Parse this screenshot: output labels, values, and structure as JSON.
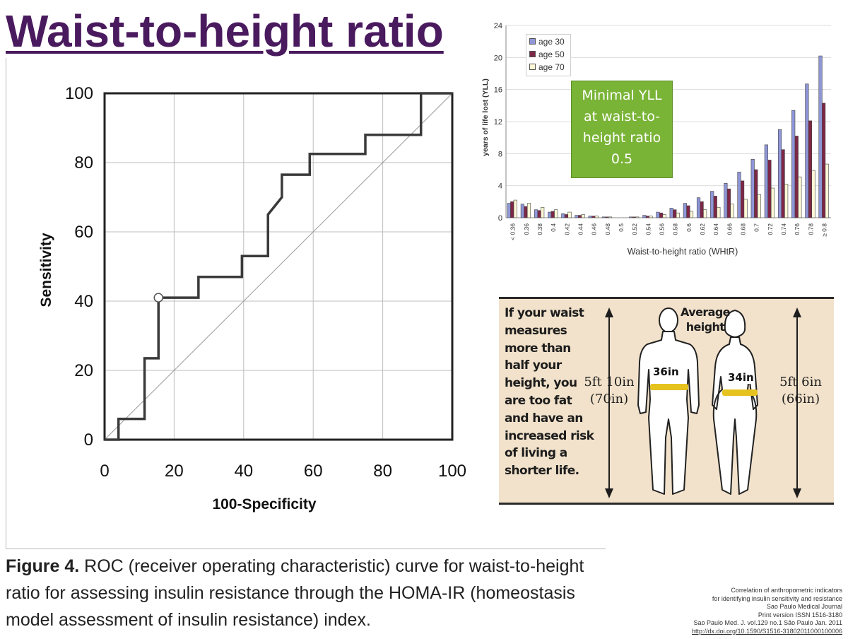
{
  "slide": {
    "title": "Waist-to-height ratio"
  },
  "figure_caption": {
    "label": "Figure 4.",
    "text": " ROC (receiver operating characteristic) curve for waist-to-height ratio for assessing insulin resistance through the HOMA-IR (homeostasis model assessment of insulin resistance) index."
  },
  "waist_infographic": {
    "text_lines": [
      "If your waist",
      "measures",
      "more than",
      "half your",
      "height, you",
      "are too fat",
      "and have an",
      "increased risk",
      "of living a",
      "shorter life."
    ],
    "average_height": [
      "Average",
      "height"
    ],
    "male": {
      "height_ft": "5ft 10in",
      "height_in": "(70in)",
      "waist": "36in"
    },
    "female": {
      "height_ft": "5ft 6in",
      "height_in": "(66in)",
      "waist": "34in"
    },
    "colors": {
      "background": "#f2e2cb",
      "belt": "#e6c21e"
    }
  },
  "citation": {
    "lines": [
      "Correlation of anthropometric indicators",
      "for identifying insulin sensitivity and resistance",
      "Sao Paulo Medical Journal",
      "Print version ISSN 1516-3180",
      "Sao Paulo Med. J. vol.129 no.1 São Paulo Jan. 2011"
    ],
    "link": "http://dx.doi.org/10.1590/S1516-31802011000100006"
  },
  "chart_data": [
    {
      "type": "line",
      "xlabel": "100-Specificity",
      "ylabel": "Sensitivity",
      "xlim": [
        0,
        100
      ],
      "ylim": [
        0,
        100
      ],
      "x_ticks": [
        0,
        20,
        40,
        60,
        80,
        100
      ],
      "y_ticks": [
        0,
        20,
        40,
        60,
        80,
        100
      ],
      "grid": true,
      "series": [
        {
          "x": [
            0,
            4,
            4,
            11.5,
            11.5,
            15.5,
            15.5,
            27,
            27,
            39.5,
            39.5,
            47,
            47,
            51,
            51,
            59,
            59,
            75,
            75,
            91,
            91,
            100
          ],
          "y": [
            0,
            0,
            6,
            6,
            23.5,
            23.5,
            41,
            41,
            47,
            47,
            53,
            53,
            65,
            70,
            76.5,
            76.5,
            82.5,
            82.5,
            88,
            88,
            100,
            100
          ]
        }
      ],
      "reference_line": {
        "x": [
          0,
          100
        ],
        "y": [
          0,
          100
        ]
      },
      "marked_point": {
        "x": 15.5,
        "y": 41
      },
      "colors": {
        "curve": "#3a3a3a",
        "diagonal": "#9a9a9a",
        "grid": "#bdbdbd"
      }
    },
    {
      "type": "bar",
      "xlabel": "Waist-to-height ratio (WHtR)",
      "ylabel": "years of life lost (YLL)",
      "ylim": [
        0,
        24
      ],
      "y_ticks": [
        0,
        4,
        8,
        12,
        16,
        20,
        24
      ],
      "grid": true,
      "legend": "top-left",
      "annotation": [
        "Minimal YLL",
        "at waist-to-",
        "height ratio",
        "0.5"
      ],
      "categories": [
        "< 0.36",
        "0.36",
        "0.38",
        "0.4",
        "0.42",
        "0.44",
        "0.46",
        "0.48",
        "0.5",
        "0.52",
        "0.54",
        "0.56",
        "0.58",
        "0.6",
        "0.62",
        "0.64",
        "0.66",
        "0.68",
        "0.7",
        "0.72",
        "0.74",
        "0.76",
        "0.78",
        "≥ 0.8"
      ],
      "series": [
        {
          "name": "age 30",
          "color": "#8f96d8",
          "values": [
            1.8,
            1.7,
            1.0,
            0.7,
            0.5,
            0.3,
            0.2,
            0.1,
            0.0,
            0.1,
            0.3,
            0.7,
            1.2,
            1.8,
            2.5,
            3.3,
            4.3,
            5.7,
            7.3,
            9.1,
            11.0,
            13.4,
            16.7,
            20.2
          ]
        },
        {
          "name": "age 50",
          "color": "#7e2646",
          "values": [
            2.0,
            1.4,
            0.9,
            0.8,
            0.4,
            0.3,
            0.2,
            0.1,
            0.0,
            0.1,
            0.2,
            0.6,
            1.0,
            1.5,
            2.0,
            2.7,
            3.6,
            4.6,
            6.0,
            7.2,
            8.5,
            10.2,
            12.1,
            14.3
          ]
        },
        {
          "name": "age 70",
          "color": "#fff8d6",
          "values": [
            2.2,
            1.8,
            1.3,
            1.0,
            0.7,
            0.4,
            0.2,
            0.1,
            0.0,
            0.1,
            0.2,
            0.4,
            0.6,
            0.8,
            1.0,
            1.3,
            1.7,
            2.3,
            2.9,
            3.7,
            4.2,
            5.1,
            5.9,
            6.7
          ]
        }
      ]
    }
  ]
}
